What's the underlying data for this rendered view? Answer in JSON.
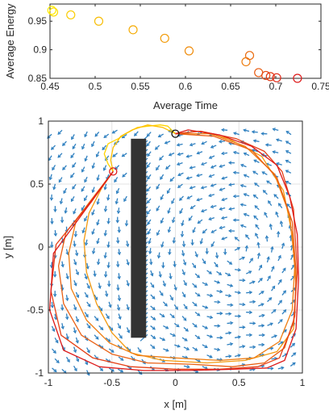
{
  "chart_data": [
    {
      "type": "scatter",
      "title": "",
      "xlabel": "Average Time",
      "ylabel": "Average Energy",
      "xlim": [
        0.45,
        0.75
      ],
      "ylim": [
        0.85,
        0.98
      ],
      "xticks": [
        "0.45",
        "0.5",
        "0.55",
        "0.6",
        "0.65",
        "0.7",
        "0.75"
      ],
      "yticks": [
        "0.85",
        "0.9",
        "0.95"
      ],
      "grid": false,
      "marker": "open-circle",
      "color_scale": [
        "#ffee00",
        "#dd1a1a"
      ],
      "points": [
        {
          "x": 0.452,
          "y": 0.969
        },
        {
          "x": 0.454,
          "y": 0.966
        },
        {
          "x": 0.473,
          "y": 0.961
        },
        {
          "x": 0.504,
          "y": 0.95
        },
        {
          "x": 0.542,
          "y": 0.935
        },
        {
          "x": 0.577,
          "y": 0.92
        },
        {
          "x": 0.604,
          "y": 0.898
        },
        {
          "x": 0.667,
          "y": 0.879
        },
        {
          "x": 0.671,
          "y": 0.89
        },
        {
          "x": 0.681,
          "y": 0.86
        },
        {
          "x": 0.689,
          "y": 0.855
        },
        {
          "x": 0.694,
          "y": 0.853
        },
        {
          "x": 0.701,
          "y": 0.851
        },
        {
          "x": 0.724,
          "y": 0.85
        }
      ]
    },
    {
      "type": "line",
      "title": "",
      "xlabel": "x [m]",
      "ylabel": "y [m]",
      "xlim": [
        -1,
        1
      ],
      "ylim": [
        -1,
        1
      ],
      "xticks": [
        "-1",
        "-0.5",
        "0",
        "0.5",
        "1"
      ],
      "yticks": [
        "-1",
        "-0.5",
        "0",
        "0.5",
        "1"
      ],
      "grid": true,
      "quiver_color": "#2f80c0",
      "obstacle": {
        "x": [
          -0.35,
          -0.23
        ],
        "y": [
          -0.72,
          0.86
        ],
        "color": "#333333"
      },
      "start_marker": {
        "x": -0.49,
        "y": 0.6,
        "color": "#dd1a1a"
      },
      "goal_marker": {
        "x": 0.0,
        "y": 0.9,
        "color": "#111111"
      },
      "series": [
        {
          "color": "#ffd400",
          "points": [
            [
              -0.49,
              0.6
            ],
            [
              -0.53,
              0.66
            ],
            [
              -0.56,
              0.74
            ],
            [
              -0.53,
              0.82
            ],
            [
              -0.45,
              0.86
            ],
            [
              -0.39,
              0.9
            ],
            [
              -0.3,
              0.95
            ],
            [
              -0.21,
              0.96
            ],
            [
              -0.12,
              0.97
            ],
            [
              -0.06,
              0.96
            ],
            [
              0.0,
              0.9
            ]
          ]
        },
        {
          "color": "#ffbf00",
          "points": [
            [
              -0.49,
              0.6
            ],
            [
              -0.51,
              0.69
            ],
            [
              -0.49,
              0.79
            ],
            [
              -0.43,
              0.88
            ],
            [
              -0.34,
              0.93
            ],
            [
              -0.22,
              0.97
            ],
            [
              -0.1,
              0.95
            ],
            [
              0.0,
              0.9
            ]
          ]
        },
        {
          "color": "#f49a10",
          "points": [
            [
              -0.49,
              0.6
            ],
            [
              -0.58,
              0.47
            ],
            [
              -0.68,
              0.27
            ],
            [
              -0.72,
              0.05
            ],
            [
              -0.7,
              -0.2
            ],
            [
              -0.62,
              -0.45
            ],
            [
              -0.5,
              -0.68
            ],
            [
              -0.35,
              -0.84
            ],
            [
              -0.1,
              -0.9
            ],
            [
              0.25,
              -0.92
            ],
            [
              0.55,
              -0.9
            ],
            [
              0.8,
              -0.83
            ],
            [
              0.93,
              -0.65
            ],
            [
              0.95,
              -0.3
            ],
            [
              0.92,
              0.1
            ],
            [
              0.85,
              0.45
            ],
            [
              0.68,
              0.72
            ],
            [
              0.42,
              0.86
            ],
            [
              0.18,
              0.92
            ],
            [
              0.0,
              0.9
            ]
          ]
        },
        {
          "color": "#ef7d12",
          "points": [
            [
              -0.49,
              0.6
            ],
            [
              -0.62,
              0.43
            ],
            [
              -0.78,
              0.22
            ],
            [
              -0.84,
              -0.05
            ],
            [
              -0.82,
              -0.33
            ],
            [
              -0.7,
              -0.58
            ],
            [
              -0.52,
              -0.76
            ],
            [
              -0.3,
              -0.86
            ],
            [
              0.0,
              -0.88
            ],
            [
              0.35,
              -0.9
            ],
            [
              0.62,
              -0.88
            ],
            [
              0.82,
              -0.75
            ],
            [
              0.92,
              -0.5
            ],
            [
              0.94,
              -0.15
            ],
            [
              0.9,
              0.25
            ],
            [
              0.78,
              0.58
            ],
            [
              0.55,
              0.8
            ],
            [
              0.28,
              0.9
            ],
            [
              0.0,
              0.9
            ]
          ]
        },
        {
          "color": "#ea6014",
          "points": [
            [
              -0.49,
              0.6
            ],
            [
              -0.66,
              0.36
            ],
            [
              -0.86,
              0.12
            ],
            [
              -0.92,
              -0.15
            ],
            [
              -0.88,
              -0.45
            ],
            [
              -0.74,
              -0.7
            ],
            [
              -0.5,
              -0.85
            ],
            [
              -0.22,
              -0.92
            ],
            [
              0.12,
              -0.93
            ],
            [
              0.45,
              -0.95
            ],
            [
              0.7,
              -0.92
            ],
            [
              0.86,
              -0.8
            ],
            [
              0.94,
              -0.55
            ],
            [
              0.95,
              -0.2
            ],
            [
              0.92,
              0.2
            ],
            [
              0.8,
              0.55
            ],
            [
              0.6,
              0.77
            ],
            [
              0.3,
              0.88
            ],
            [
              0.0,
              0.9
            ]
          ]
        },
        {
          "color": "#e54017",
          "points": [
            [
              -0.49,
              0.6
            ],
            [
              -0.7,
              0.32
            ],
            [
              -0.94,
              0.02
            ],
            [
              -0.98,
              -0.35
            ],
            [
              -0.9,
              -0.7
            ],
            [
              -0.65,
              -0.88
            ],
            [
              -0.35,
              -0.95
            ],
            [
              0.0,
              -0.97
            ],
            [
              0.35,
              -0.97
            ],
            [
              0.65,
              -0.95
            ],
            [
              0.82,
              -0.88
            ],
            [
              0.93,
              -0.6
            ],
            [
              0.96,
              -0.2
            ],
            [
              0.93,
              0.3
            ],
            [
              0.84,
              0.6
            ],
            [
              0.7,
              0.76
            ],
            [
              0.48,
              0.86
            ],
            [
              0.2,
              0.92
            ],
            [
              0.0,
              0.9
            ]
          ]
        },
        {
          "color": "#dd1a1a",
          "points": [
            [
              -0.49,
              0.6
            ],
            [
              -0.72,
              0.28
            ],
            [
              -0.96,
              -0.05
            ],
            [
              -0.99,
              -0.5
            ],
            [
              -0.88,
              -0.82
            ],
            [
              -0.6,
              -0.95
            ],
            [
              -0.25,
              -0.98
            ],
            [
              0.1,
              -0.98
            ],
            [
              0.45,
              -0.97
            ],
            [
              0.72,
              -0.96
            ],
            [
              0.86,
              -0.9
            ],
            [
              0.95,
              -0.65
            ],
            [
              0.97,
              -0.25
            ],
            [
              0.96,
              0.1
            ],
            [
              0.9,
              0.4
            ],
            [
              0.8,
              0.65
            ],
            [
              0.6,
              0.8
            ],
            [
              0.35,
              0.89
            ],
            [
              0.1,
              0.93
            ],
            [
              0.0,
              0.9
            ]
          ]
        }
      ]
    }
  ]
}
